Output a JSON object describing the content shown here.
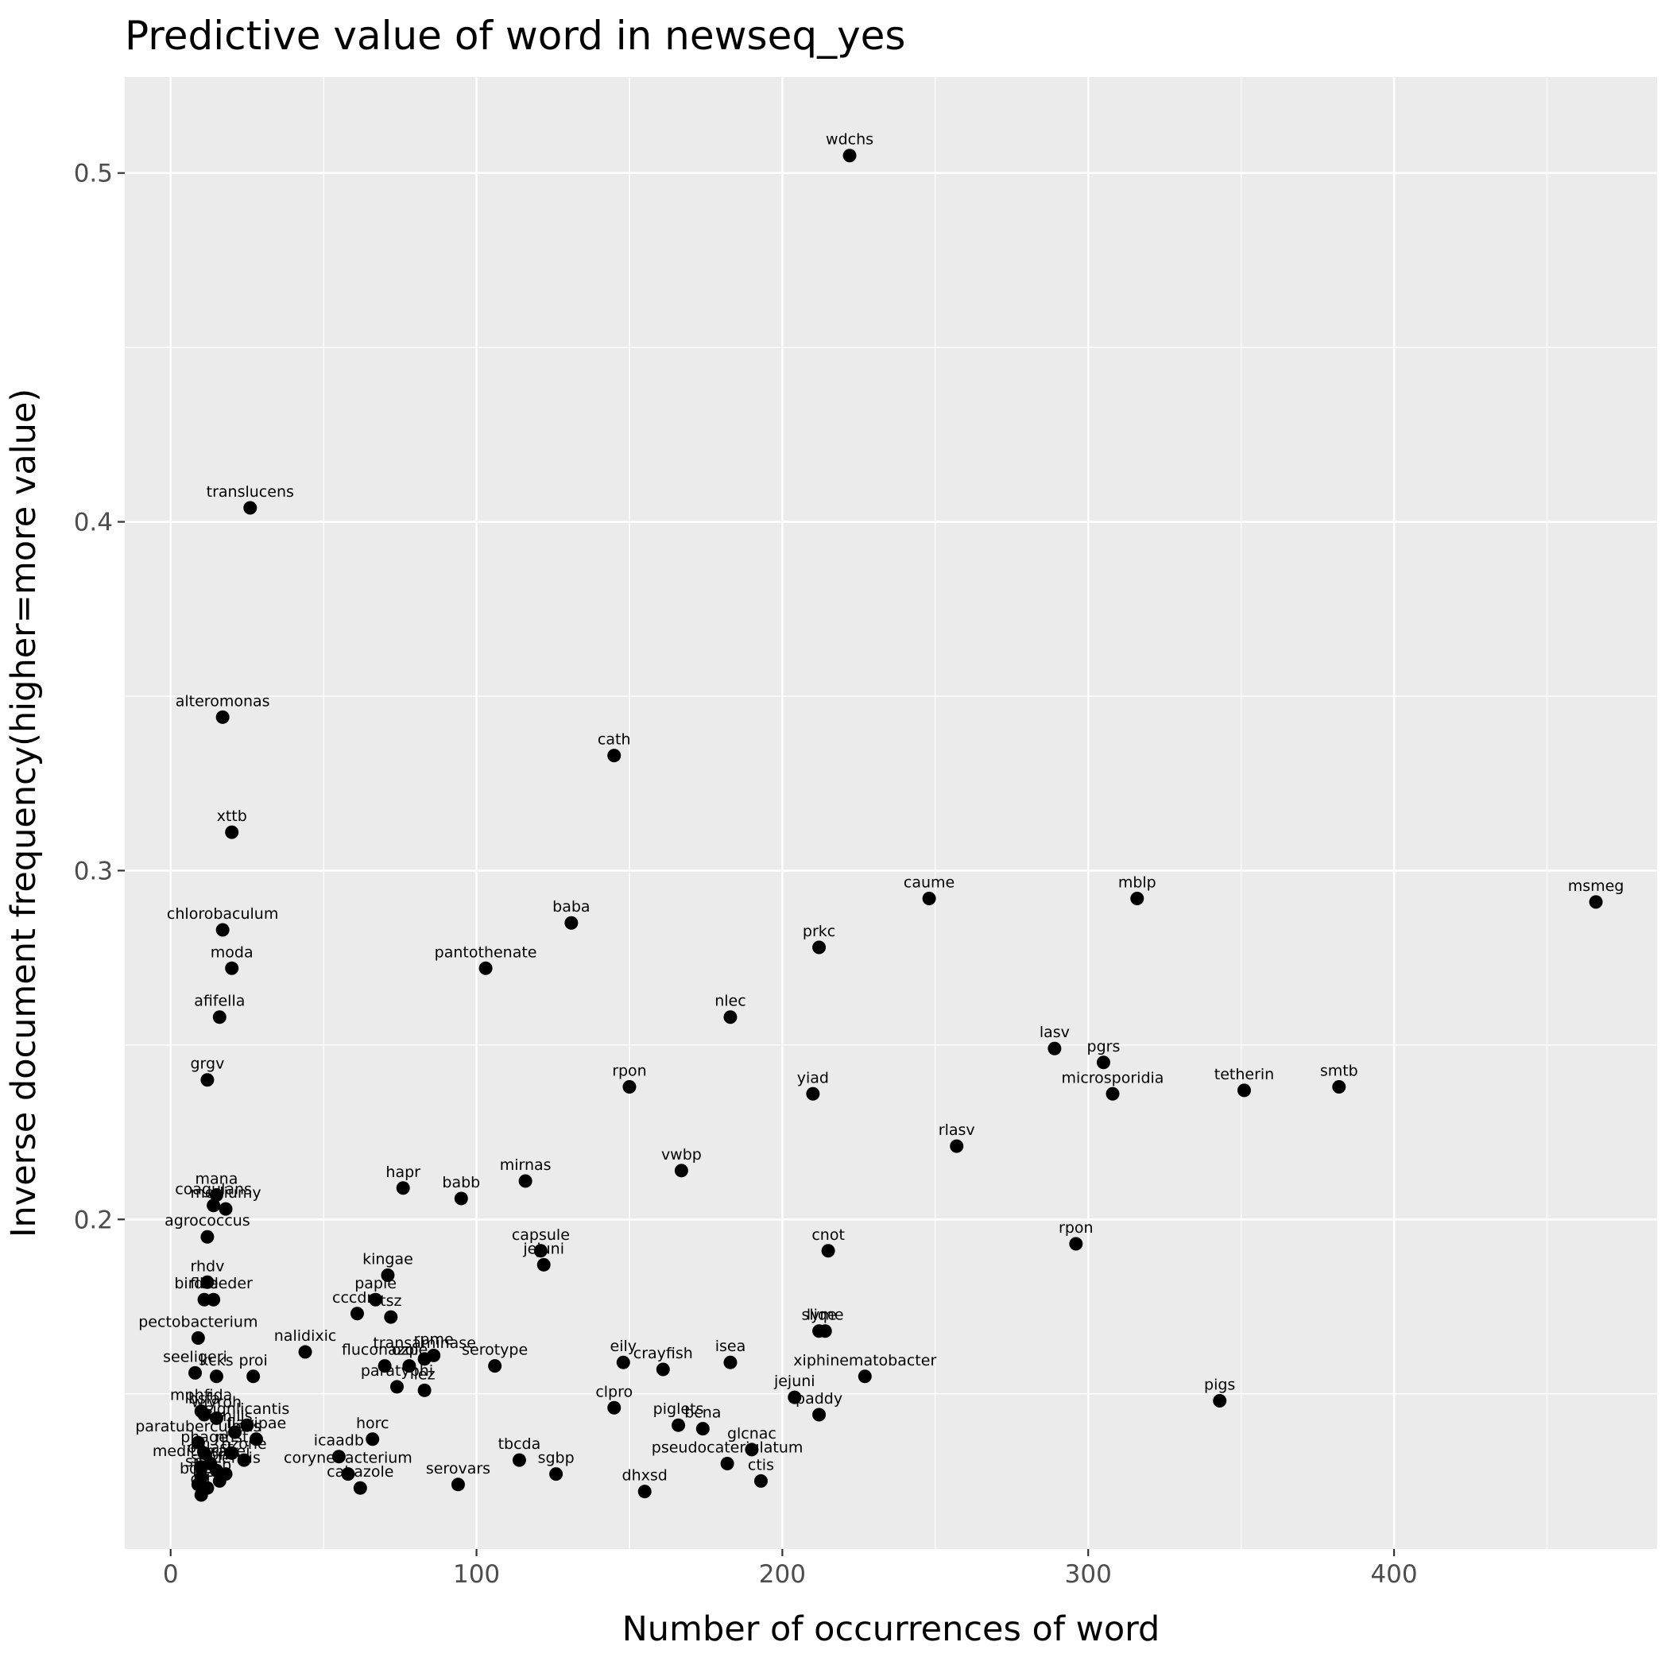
{
  "chart_data": {
    "type": "scatter",
    "title": "Predictive value of word in newseq_yes",
    "xlabel": "Number of occurrences of word",
    "ylabel": "Inverse document frequency(higher=more value)",
    "xlim": [
      -15,
      486
    ],
    "ylim": [
      0.1055,
      0.5275
    ],
    "x_ticks": [
      0,
      100,
      200,
      300,
      400
    ],
    "x_tick_labels": [
      "0",
      "100",
      "200",
      "300",
      "400"
    ],
    "y_ticks": [
      0.2,
      0.3,
      0.4,
      0.5
    ],
    "y_tick_labels": [
      "0.2",
      "0.3",
      "0.4",
      "0.5"
    ],
    "grid": true,
    "legend": "none",
    "colors": {
      "panel": "#ebebeb",
      "grid": "#ffffff",
      "point": "#000000",
      "tick": "#4d4d4d"
    },
    "points": [
      {
        "label": "wdchs",
        "x": 222,
        "y": 0.505
      },
      {
        "label": "translucens",
        "x": 26,
        "y": 0.404
      },
      {
        "label": "alteromonas",
        "x": 17,
        "y": 0.344
      },
      {
        "label": "cath",
        "x": 145,
        "y": 0.333
      },
      {
        "label": "xttb",
        "x": 20,
        "y": 0.311
      },
      {
        "label": "msmeg",
        "x": 466,
        "y": 0.291
      },
      {
        "label": "caume",
        "x": 248,
        "y": 0.292
      },
      {
        "label": "mblp",
        "x": 316,
        "y": 0.292
      },
      {
        "label": "baba",
        "x": 131,
        "y": 0.285
      },
      {
        "label": "chlorobaculum",
        "x": 17,
        "y": 0.283
      },
      {
        "label": "prkc",
        "x": 212,
        "y": 0.278
      },
      {
        "label": "pantothenate",
        "x": 103,
        "y": 0.272
      },
      {
        "label": "moda",
        "x": 20,
        "y": 0.272
      },
      {
        "label": "afifella",
        "x": 16,
        "y": 0.258
      },
      {
        "label": "nlec",
        "x": 183,
        "y": 0.258
      },
      {
        "label": "lasv",
        "x": 289,
        "y": 0.249
      },
      {
        "label": "pgrs",
        "x": 305,
        "y": 0.245
      },
      {
        "label": "grgv",
        "x": 12,
        "y": 0.24
      },
      {
        "label": "rpon",
        "x": 150,
        "y": 0.238
      },
      {
        "label": "tetherin",
        "x": 351,
        "y": 0.237
      },
      {
        "label": "smtb",
        "x": 382,
        "y": 0.238
      },
      {
        "label": "yiad",
        "x": 210,
        "y": 0.236
      },
      {
        "label": "microsporidia",
        "x": 308,
        "y": 0.236
      },
      {
        "label": "rlasv",
        "x": 257,
        "y": 0.221
      },
      {
        "label": "vwbp",
        "x": 167,
        "y": 0.214
      },
      {
        "label": "mirnas",
        "x": 116,
        "y": 0.211
      },
      {
        "label": "hapr",
        "x": 76,
        "y": 0.209
      },
      {
        "label": "babb",
        "x": 95,
        "y": 0.206
      },
      {
        "label": "mana",
        "x": 15,
        "y": 0.207
      },
      {
        "label": "coagulans",
        "x": 14,
        "y": 0.204
      },
      {
        "label": "mediumy",
        "x": 18,
        "y": 0.203
      },
      {
        "label": "agrococcus",
        "x": 12,
        "y": 0.195
      },
      {
        "label": "rpon",
        "x": 296,
        "y": 0.193
      },
      {
        "label": "cnot",
        "x": 215,
        "y": 0.191
      },
      {
        "label": "capsule",
        "x": 121,
        "y": 0.191
      },
      {
        "label": "jejuni",
        "x": 122,
        "y": 0.187
      },
      {
        "label": "kingae",
        "x": 71,
        "y": 0.184
      },
      {
        "label": "rhdv",
        "x": 12,
        "y": 0.182
      },
      {
        "label": "birdfeeder",
        "x": 14,
        "y": 0.177
      },
      {
        "label": "fled",
        "x": 11,
        "y": 0.177
      },
      {
        "label": "papie",
        "x": 67,
        "y": 0.177
      },
      {
        "label": "cccdra",
        "x": 61,
        "y": 0.173
      },
      {
        "label": "tsz",
        "x": 72,
        "y": 0.172
      },
      {
        "label": "lyme",
        "x": 214,
        "y": 0.168
      },
      {
        "label": "sliqe",
        "x": 212,
        "y": 0.168
      },
      {
        "label": "pectobacterium",
        "x": 9,
        "y": 0.166
      },
      {
        "label": "nalidixic",
        "x": 44,
        "y": 0.162
      },
      {
        "label": "rpme",
        "x": 86,
        "y": 0.161
      },
      {
        "label": "transaminase",
        "x": 83,
        "y": 0.16
      },
      {
        "label": "serotype",
        "x": 106,
        "y": 0.158
      },
      {
        "label": "eily",
        "x": 148,
        "y": 0.159
      },
      {
        "label": "crayfish",
        "x": 161,
        "y": 0.157
      },
      {
        "label": "isea",
        "x": 183,
        "y": 0.159
      },
      {
        "label": "xiphinematobacter",
        "x": 227,
        "y": 0.155
      },
      {
        "label": "fluconazole",
        "x": 70,
        "y": 0.158
      },
      {
        "label": "ozpc",
        "x": 78,
        "y": 0.158
      },
      {
        "label": "seeligeri",
        "x": 8,
        "y": 0.156
      },
      {
        "label": "kcks",
        "x": 15,
        "y": 0.155
      },
      {
        "label": "proi",
        "x": 27,
        "y": 0.155
      },
      {
        "label": "paratyphi",
        "x": 74,
        "y": 0.152
      },
      {
        "label": "lez",
        "x": 83,
        "y": 0.151
      },
      {
        "label": "jejuni",
        "x": 204,
        "y": 0.149
      },
      {
        "label": "pigs",
        "x": 343,
        "y": 0.148
      },
      {
        "label": "clpro",
        "x": 145,
        "y": 0.146
      },
      {
        "label": "paddy",
        "x": 212,
        "y": 0.144
      },
      {
        "label": "mphfida",
        "x": 10,
        "y": 0.145
      },
      {
        "label": "bsfa",
        "x": 11,
        "y": 0.144
      },
      {
        "label": "wiyroh",
        "x": 15,
        "y": 0.143
      },
      {
        "label": "piglets",
        "x": 166,
        "y": 0.141
      },
      {
        "label": "bcna",
        "x": 174,
        "y": 0.14
      },
      {
        "label": "signlicantis",
        "x": 25,
        "y": 0.141
      },
      {
        "label": "mllis",
        "x": 21,
        "y": 0.139
      },
      {
        "label": "horc",
        "x": 66,
        "y": 0.137
      },
      {
        "label": "paratuberculosis",
        "x": 9,
        "y": 0.136
      },
      {
        "label": "flavipae",
        "x": 28,
        "y": 0.137
      },
      {
        "label": "icaadb",
        "x": 55,
        "y": 0.132
      },
      {
        "label": "glcnac",
        "x": 190,
        "y": 0.134
      },
      {
        "label": "pseudocateriulatum",
        "x": 182,
        "y": 0.13
      },
      {
        "label": "tbcda",
        "x": 114,
        "y": 0.131
      },
      {
        "label": "sgbp",
        "x": 126,
        "y": 0.127
      },
      {
        "label": "corynebacterium",
        "x": 58,
        "y": 0.127
      },
      {
        "label": "cahazole",
        "x": 62,
        "y": 0.123
      },
      {
        "label": "serovars",
        "x": 94,
        "y": 0.124
      },
      {
        "label": "dhxsd",
        "x": 155,
        "y": 0.122
      },
      {
        "label": "ctis",
        "x": 193,
        "y": 0.125
      },
      {
        "label": "phage",
        "x": 11,
        "y": 0.133
      },
      {
        "label": "nhst",
        "x": 20,
        "y": 0.133
      },
      {
        "label": "ozone",
        "x": 24,
        "y": 0.131
      },
      {
        "label": "oblast",
        "x": 13,
        "y": 0.13
      },
      {
        "label": "mediterranei",
        "x": 10,
        "y": 0.129
      },
      {
        "label": "vphl",
        "x": 15,
        "y": 0.128
      },
      {
        "label": "sienensis",
        "x": 18,
        "y": 0.127
      },
      {
        "label": "spm",
        "x": 10,
        "y": 0.126
      },
      {
        "label": "rsp",
        "x": 16,
        "y": 0.125
      },
      {
        "label": "bdex",
        "x": 9,
        "y": 0.124
      },
      {
        "label": "lsec",
        "x": 12,
        "y": 0.123
      },
      {
        "label": "qrt",
        "x": 10,
        "y": 0.121
      }
    ]
  }
}
